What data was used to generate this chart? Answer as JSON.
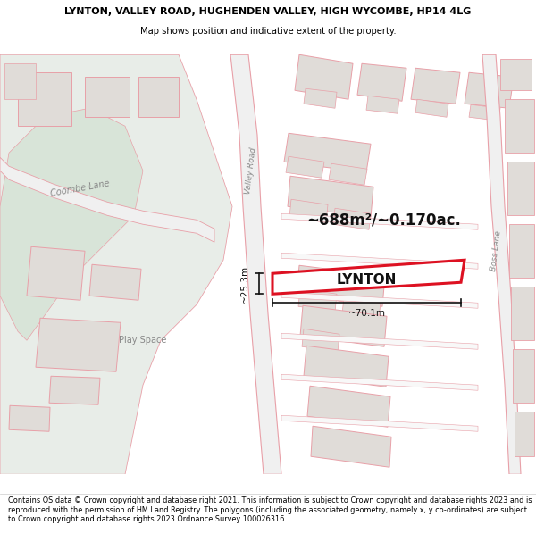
{
  "title_line1": "LYNTON, VALLEY ROAD, HUGHENDEN VALLEY, HIGH WYCOMBE, HP14 4LG",
  "title_line2": "Map shows position and indicative extent of the property.",
  "footer_text": "Contains OS data © Crown copyright and database right 2021. This information is subject to Crown copyright and database rights 2023 and is reproduced with the permission of HM Land Registry. The polygons (including the associated geometry, namely x, y co-ordinates) are subject to Crown copyright and database rights 2023 Ordnance Survey 100026316.",
  "area_text": "~688m²/~0.170ac.",
  "label_text": "LYNTON",
  "dim1_text": "~25.3m",
  "dim2_text": "~70.1m",
  "map_bg": "#ffffff",
  "line_color": "#e8a0a8",
  "highlight_color": "#dd1122",
  "green_area": "#e8ede8",
  "building_fill": "#e0dcd8",
  "road_label_color": "#888888",
  "dim_color": "#111111",
  "text_color": "#333333"
}
